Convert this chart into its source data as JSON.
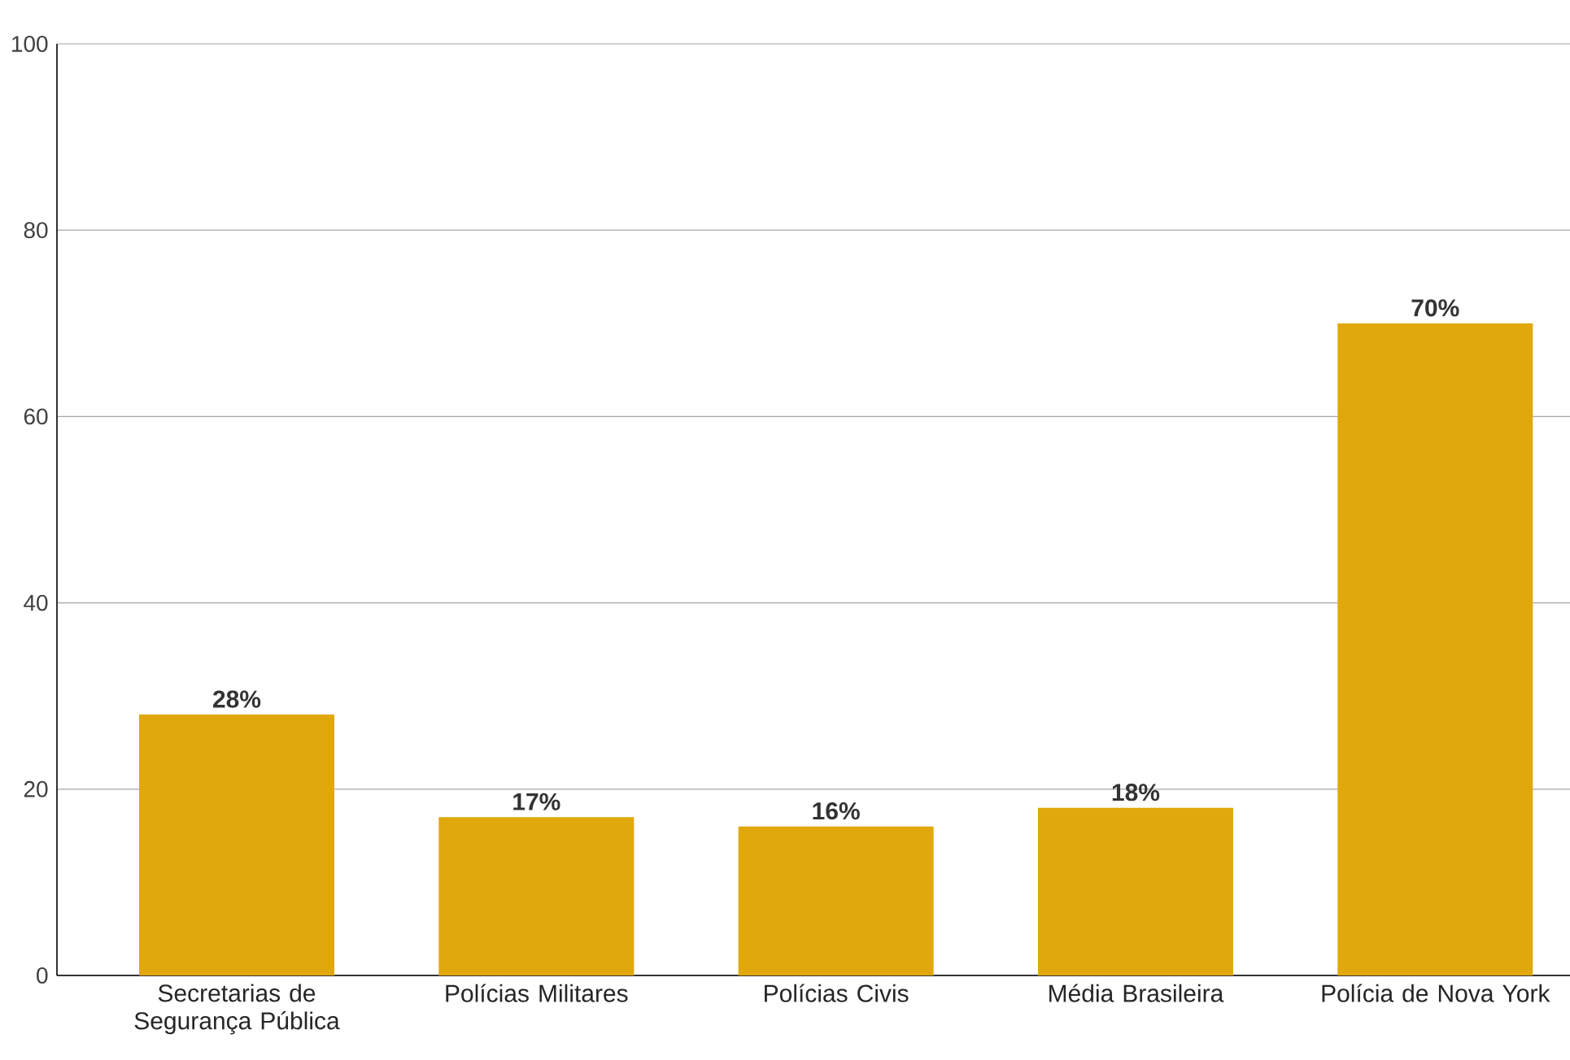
{
  "chart_data": {
    "type": "bar",
    "categories": [
      "Secretarias de Segurança Pública",
      "Polícias Militares",
      "Polícias Civis",
      "Média Brasileira",
      "Polícia de Nova York"
    ],
    "values": [
      28,
      17,
      16,
      18,
      70
    ],
    "value_labels": [
      "28%",
      "17%",
      "16%",
      "18%",
      "70%"
    ],
    "color": "#e0a80c",
    "ylim": [
      0,
      100
    ],
    "yticks": [
      0,
      20,
      40,
      60,
      80,
      100
    ],
    "grid": "y"
  }
}
